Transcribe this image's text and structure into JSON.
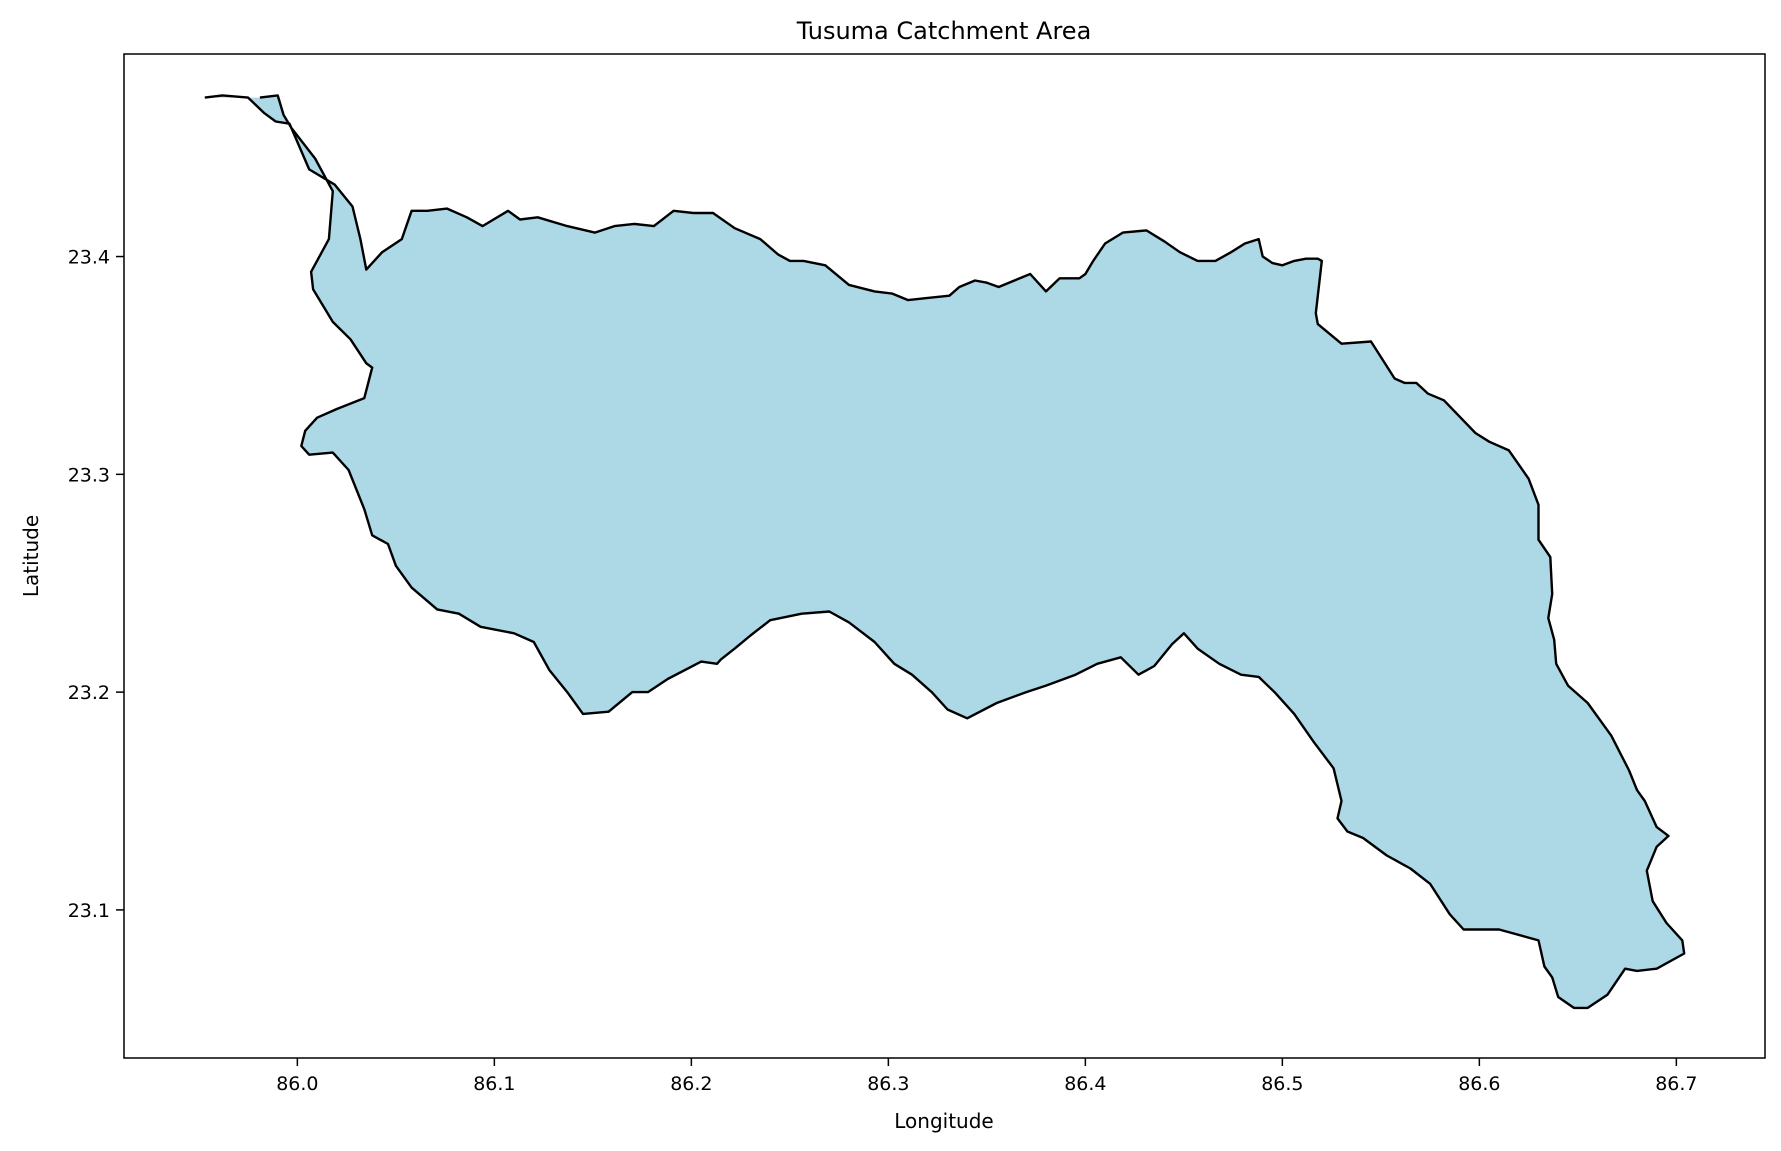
{
  "chart_data": {
    "type": "map",
    "title": "Tusuma Catchment Area",
    "xlabel": "Longitude",
    "ylabel": "Latitude",
    "xlim": [
      85.912,
      86.745
    ],
    "ylim": [
      23.032,
      23.493
    ],
    "xticks": [
      86.0,
      86.1,
      86.2,
      86.3,
      86.4,
      86.5,
      86.6,
      86.7
    ],
    "xtick_labels": [
      "86.0",
      "86.1",
      "86.2",
      "86.3",
      "86.4",
      "86.5",
      "86.6",
      "86.7"
    ],
    "yticks": [
      23.1,
      23.2,
      23.3,
      23.4
    ],
    "ytick_labels": [
      "23.1",
      "23.2",
      "23.3",
      "23.4"
    ],
    "grid": false,
    "fill_color": "#add8e6",
    "edge_color": "#000000",
    "polygon": {
      "name": "",
      "lon": [
        85.953,
        85.962,
        85.975,
        85.983,
        85.989,
        85.996,
        86.006,
        86.019,
        86.028,
        86.032,
        86.035,
        86.043,
        86.053,
        86.058,
        86.066,
        86.076,
        86.086,
        86.094,
        86.107,
        86.113,
        86.122,
        86.137,
        86.151,
        86.161,
        86.171,
        86.181,
        86.191,
        86.201,
        86.211,
        86.222,
        86.235,
        86.244,
        86.25,
        86.257,
        86.268,
        86.28,
        86.293,
        86.302,
        86.31,
        86.32,
        86.331,
        86.336,
        86.344,
        86.35,
        86.356,
        86.364,
        86.372,
        86.38,
        86.387,
        86.394,
        86.397,
        86.4,
        86.404,
        86.41,
        86.419,
        86.431,
        86.44,
        86.448,
        86.457,
        86.466,
        86.474,
        86.481,
        86.488,
        86.49,
        86.495,
        86.5,
        86.506,
        86.512,
        86.518,
        86.52,
        86.518,
        86.517,
        86.518,
        86.53,
        86.545,
        86.557,
        86.562,
        86.568,
        86.574,
        86.582,
        86.598,
        86.605,
        86.615,
        86.625,
        86.63,
        86.63,
        86.636,
        86.637,
        86.635,
        86.638,
        86.639,
        86.645,
        86.655,
        86.667,
        86.676,
        86.68,
        86.684,
        86.69,
        86.696,
        86.69,
        86.685,
        86.688,
        86.695,
        86.703,
        86.704,
        86.69,
        86.68,
        86.674,
        86.665,
        86.655,
        86.648,
        86.64,
        86.637,
        86.633,
        86.63,
        86.61,
        86.592,
        86.585,
        86.575,
        86.565,
        86.553,
        86.541,
        86.533,
        86.528,
        86.53,
        86.526,
        86.516,
        86.506,
        86.496,
        86.488,
        86.479,
        86.468,
        86.457,
        86.45,
        86.444,
        86.435,
        86.427,
        86.418,
        86.406,
        86.395,
        86.38,
        86.37,
        86.355,
        86.34,
        86.33,
        86.322,
        86.312,
        86.303,
        86.293,
        86.28,
        86.27,
        86.256,
        86.24,
        86.23,
        86.222,
        86.215,
        86.213,
        86.205,
        86.188,
        86.178,
        86.17,
        86.158,
        86.145,
        86.137,
        86.128,
        86.12,
        86.11,
        86.093,
        86.082,
        86.071,
        86.058,
        86.05,
        86.046,
        86.038,
        86.034,
        86.026,
        86.018,
        86.006,
        86.002,
        86.004,
        86.01,
        86.02,
        86.034,
        86.038,
        86.035,
        86.027,
        86.018,
        86.008,
        86.007,
        86.016,
        86.018,
        86.018,
        86.009,
        85.997,
        85.993,
        85.99,
        85.981,
        85.97,
        85.957,
        85.953
      ],
      "lat": [
        23.473,
        23.474,
        23.473,
        23.466,
        23.462,
        23.461,
        23.44,
        23.433,
        23.423,
        23.408,
        23.394,
        23.402,
        23.408,
        23.421,
        23.421,
        23.422,
        23.418,
        23.414,
        23.421,
        23.417,
        23.418,
        23.414,
        23.411,
        23.414,
        23.415,
        23.414,
        23.421,
        23.42,
        23.42,
        23.413,
        23.408,
        23.401,
        23.398,
        23.398,
        23.396,
        23.387,
        23.384,
        23.383,
        23.38,
        23.381,
        23.382,
        23.386,
        23.389,
        23.388,
        23.386,
        23.389,
        23.392,
        23.384,
        23.39,
        23.39,
        23.39,
        23.392,
        23.398,
        23.406,
        23.411,
        23.412,
        23.407,
        23.402,
        23.398,
        23.398,
        23.402,
        23.406,
        23.408,
        23.4,
        23.397,
        23.396,
        23.398,
        23.399,
        23.399,
        23.398,
        23.382,
        23.374,
        23.369,
        23.36,
        23.361,
        23.344,
        23.342,
        23.342,
        23.337,
        23.334,
        23.319,
        23.315,
        23.311,
        23.298,
        23.286,
        23.27,
        23.262,
        23.245,
        23.234,
        23.224,
        23.213,
        23.203,
        23.195,
        23.18,
        23.164,
        23.155,
        23.15,
        23.138,
        23.134,
        23.129,
        23.118,
        23.104,
        23.094,
        23.086,
        23.08,
        23.073,
        23.072,
        23.073,
        23.061,
        23.055,
        23.055,
        23.06,
        23.069,
        23.074,
        23.086,
        23.091,
        23.091,
        23.098,
        23.112,
        23.119,
        23.125,
        23.133,
        23.136,
        23.142,
        23.15,
        23.165,
        23.177,
        23.19,
        23.2,
        23.207,
        23.208,
        23.213,
        23.22,
        23.227,
        23.222,
        23.212,
        23.208,
        23.216,
        23.213,
        23.208,
        23.203,
        23.2,
        23.195,
        23.188,
        23.192,
        23.2,
        23.208,
        23.213,
        23.223,
        23.232,
        23.237,
        23.236,
        23.233,
        23.226,
        23.22,
        23.215,
        23.213,
        23.214,
        23.206,
        23.2,
        23.2,
        23.191,
        23.19,
        23.2,
        23.21,
        23.223,
        23.227,
        23.23,
        23.236,
        23.238,
        23.248,
        23.258,
        23.268,
        23.272,
        23.284,
        23.302,
        23.31,
        23.309,
        23.313,
        23.32,
        23.326,
        23.33,
        23.335,
        23.349,
        23.351,
        23.362,
        23.37,
        23.385,
        23.393,
        23.408,
        23.43,
        23.43,
        23.445,
        23.459,
        23.465,
        23.474,
        23.473
      ]
    }
  }
}
